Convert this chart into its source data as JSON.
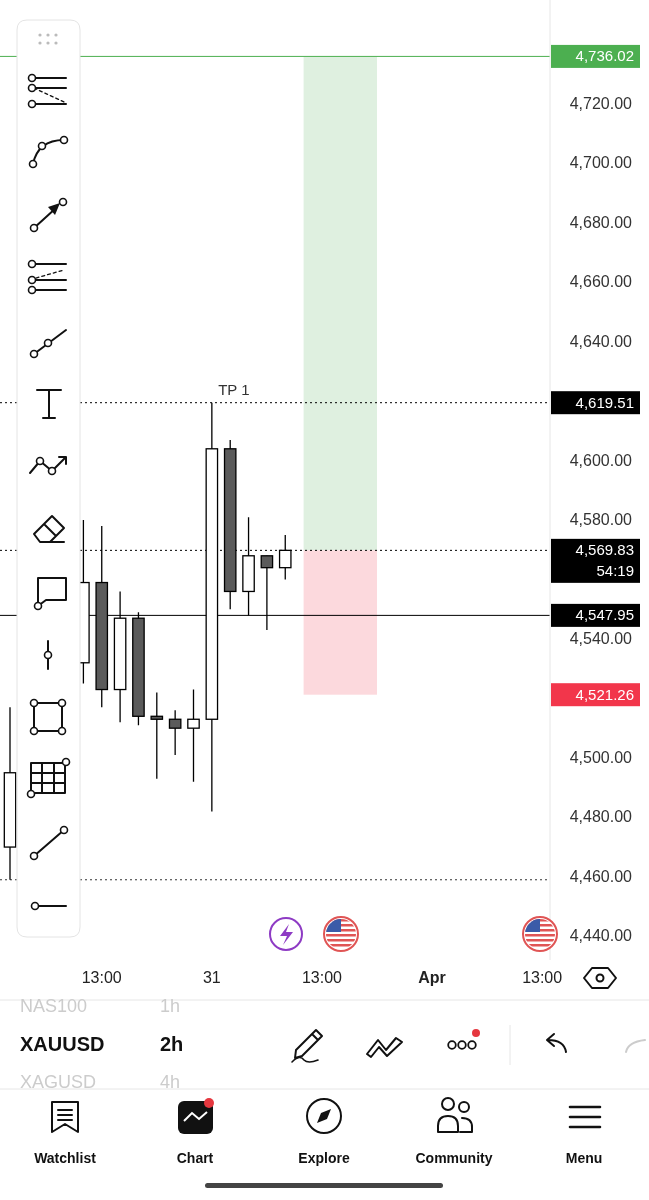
{
  "chart_data": {
    "type": "candlestick",
    "categories": [
      null,
      null,
      null,
      null,
      null,
      "13:00",
      null,
      null,
      null,
      null,
      null,
      "31",
      null,
      null,
      null,
      null,
      null,
      "13:00",
      null,
      null,
      null,
      null,
      null,
      "Apr",
      null,
      null,
      null,
      null,
      null,
      "13:00"
    ],
    "ohlc": [
      [
        4470,
        4517,
        4459,
        4495
      ],
      null,
      null,
      null,
      [
        4532,
        4580,
        4525,
        4559
      ],
      [
        4559,
        4578,
        4517,
        4523
      ],
      [
        4523,
        4556,
        4512,
        4547
      ],
      [
        4547,
        4549,
        4511,
        4514
      ],
      [
        4514,
        4522,
        4493,
        4513
      ],
      [
        4513,
        4516,
        4501,
        4510
      ],
      [
        4510,
        4523,
        4492,
        4513
      ],
      [
        4513,
        4619.51,
        4482,
        4604
      ],
      [
        4604,
        4607,
        4550,
        4556
      ],
      [
        4556,
        4581,
        4547.95,
        4568
      ],
      [
        4568,
        4568,
        4543,
        4564
      ],
      [
        4564,
        4575,
        4560,
        4569.83
      ],
      null,
      null,
      null,
      null,
      null,
      null,
      null,
      null,
      null,
      null,
      null,
      null,
      null,
      null
    ],
    "colors": [
      "#ffffff",
      null,
      null,
      null,
      "#ffffff",
      "#5b5b5b",
      "#ffffff",
      "#5b5b5b",
      "#5b5b5b",
      "#5b5b5b",
      "#ffffff",
      "#ffffff",
      "#5b5b5b",
      "#ffffff",
      "#5b5b5b",
      "#ffffff",
      null,
      null,
      null,
      null,
      null,
      null,
      null,
      null,
      null,
      null,
      null,
      null,
      null,
      null
    ],
    "ylim": [
      4432,
      4755
    ],
    "yticks": [
      {
        "value": 4440,
        "label": "4,440.00"
      },
      {
        "value": 4460,
        "label": "4,460.00"
      },
      {
        "value": 4480,
        "label": "4,480.00"
      },
      {
        "value": 4500,
        "label": "4,500.00"
      },
      {
        "value": 4540,
        "label": "4,540.00"
      },
      {
        "value": 4580,
        "label": "4,580.00"
      },
      {
        "value": 4600,
        "label": "4,600.00"
      },
      {
        "value": 4640,
        "label": "4,640.00"
      },
      {
        "value": 4660,
        "label": "4,660.00"
      },
      {
        "value": 4680,
        "label": "4,680.00"
      },
      {
        "value": 4700,
        "label": "4,700.00"
      },
      {
        "value": 4720,
        "label": "4,720.00"
      }
    ],
    "ref_lines": [
      {
        "axis": "y",
        "value": 4736.02,
        "label": "4,736.02",
        "color": "#4caf50",
        "line_style": "solid"
      },
      {
        "axis": "y",
        "value": 4619.51,
        "label": "4,619.51",
        "color": "#000000",
        "line_style": "dotted"
      },
      {
        "axis": "y",
        "value": 4569.83,
        "label": "4,569.83",
        "color": "#000000",
        "line_style": "dotted"
      },
      {
        "axis": "y",
        "value": 4547.95,
        "label": "4,547.95",
        "color": "#000000",
        "line_style": "solid"
      },
      {
        "axis": "y",
        "value": 4459,
        "label": null,
        "line_style": "dotted"
      }
    ],
    "bands": [
      {
        "axis": "y",
        "from": 4569.83,
        "to": 4736.02,
        "color": "#dff0e0",
        "label": null
      },
      {
        "axis": "y",
        "from": 4521.26,
        "to": 4569.83,
        "color": "#fcd9dd",
        "label": "4,521.26"
      }
    ],
    "annotations": [
      {
        "text": "TP 1",
        "x": "31",
        "y": 4619.51
      },
      "54:19",
      "NAS100",
      "1h",
      "XAUUSD",
      "2h",
      "XAGUSD",
      "4h",
      "Watchlist",
      "Chart",
      "Explore",
      "Community",
      "Menu"
    ]
  }
}
